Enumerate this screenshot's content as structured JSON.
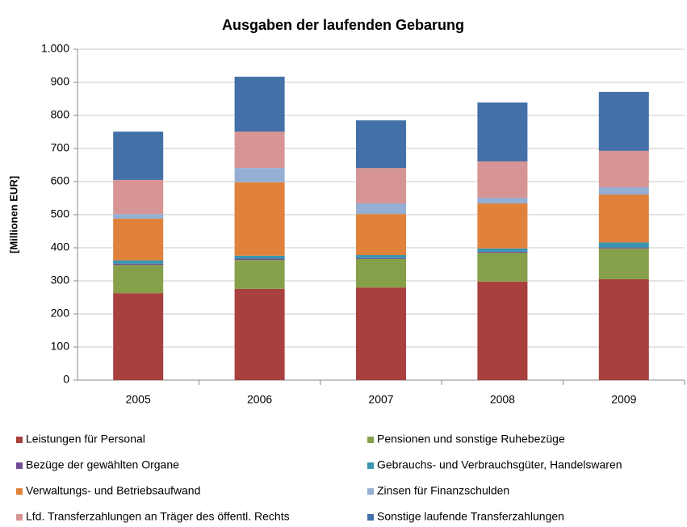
{
  "chart_data": {
    "type": "stacked_bar",
    "title": "Ausgaben der laufenden Gebarung",
    "y_label": "[Millionen EUR]",
    "categories": [
      "2005",
      "2006",
      "2007",
      "2008",
      "2009"
    ],
    "series": [
      {
        "name": "Leistungen für Personal",
        "color": "#a8403e",
        "values": [
          263,
          276,
          280,
          298,
          305
        ]
      },
      {
        "name": "Pensionen und sonstige Ruhebezüge",
        "color": "#86a04a",
        "values": [
          85,
          87,
          86,
          87,
          93
        ]
      },
      {
        "name": "Bezüge der gewählten Organe",
        "color": "#6f4e96",
        "values": [
          4,
          4,
          3,
          3,
          3
        ]
      },
      {
        "name": "Gebrauchs- und Verbrauchsgüter, Handelswaren",
        "color": "#3a95b0",
        "values": [
          10,
          9,
          9,
          10,
          15
        ]
      },
      {
        "name": "Verwaltungs- und Betriebsaufwand",
        "color": "#e0823b",
        "values": [
          126,
          222,
          124,
          136,
          145
        ]
      },
      {
        "name": "Zinsen für Finanzschulden",
        "color": "#94aed4",
        "values": [
          14,
          43,
          32,
          17,
          22
        ]
      },
      {
        "name": "Lfd. Transferzahlungen an Träger des öffentl. Rechts",
        "color": "#d69594",
        "values": [
          103,
          110,
          107,
          110,
          110
        ]
      },
      {
        "name": "Sonstige laufende Transferzahlungen",
        "color": "#4470a8",
        "values": [
          146,
          166,
          144,
          178,
          178
        ]
      }
    ],
    "ylim": [
      0,
      1000
    ],
    "yticks": [
      0,
      100,
      200,
      300,
      400,
      500,
      600,
      700,
      800,
      900,
      {
        "value": 1000,
        "label": "1.000"
      }
    ],
    "grid": true
  }
}
